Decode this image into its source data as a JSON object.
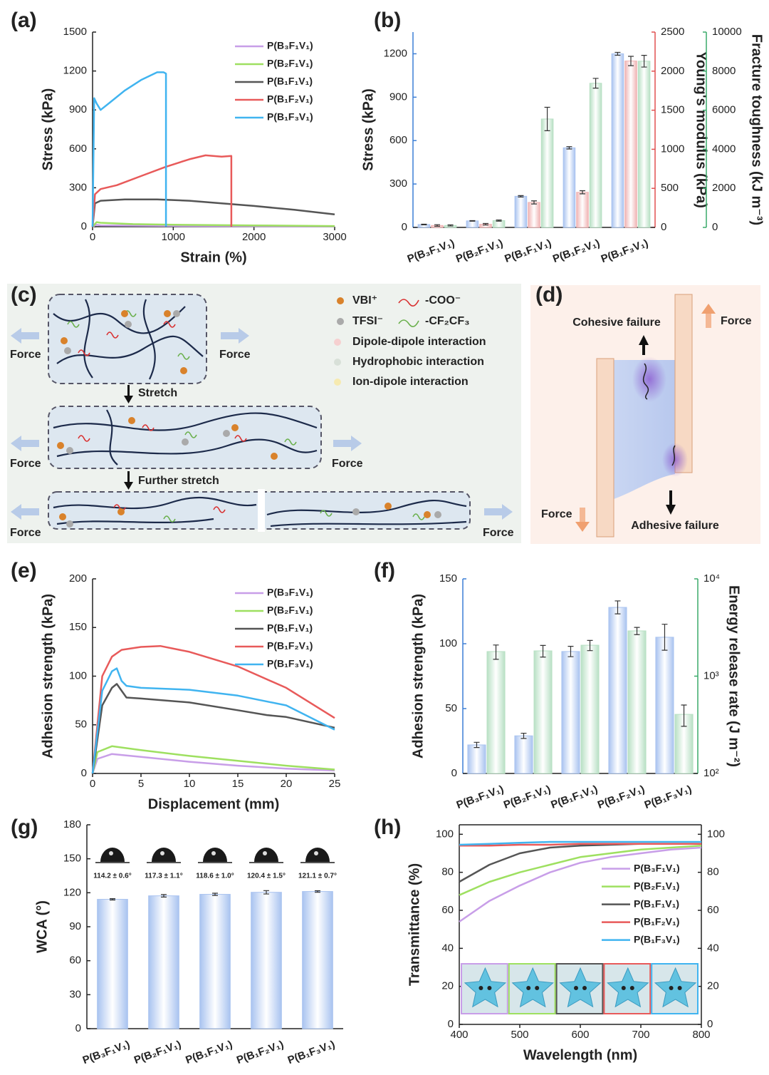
{
  "chart_data": [
    {
      "type": "line",
      "panel": "(a)",
      "xlabel": "Strain (%)",
      "ylabel": "Stress (kPa)",
      "xlim": [
        0,
        3000
      ],
      "ylim": [
        0,
        1500
      ],
      "xticks": [
        0,
        1000,
        2000,
        3000
      ],
      "yticks": [
        0,
        300,
        600,
        900,
        1200,
        1500
      ],
      "legend": "upper right",
      "series": [
        {
          "name": "P(B₃F₁V₁)",
          "color": "#c89ee8",
          "x": [
            0,
            50,
            100,
            500,
            1000,
            2000,
            3000
          ],
          "values": [
            0,
            15,
            10,
            8,
            6,
            4,
            3
          ]
        },
        {
          "name": "P(B₂F₁V₁)",
          "color": "#9ee060",
          "x": [
            0,
            50,
            100,
            500,
            1000,
            2000,
            3000
          ],
          "values": [
            0,
            35,
            30,
            20,
            15,
            10,
            5
          ]
        },
        {
          "name": "P(B₁F₁V₁)",
          "color": "#555555",
          "x": [
            0,
            30,
            100,
            400,
            800,
            1200,
            1600,
            2000,
            2500,
            3000
          ],
          "values": [
            0,
            180,
            200,
            210,
            210,
            200,
            180,
            160,
            130,
            95
          ]
        },
        {
          "name": "P(B₁F₂V₁)",
          "color": "#e85a5a",
          "x": [
            0,
            30,
            100,
            300,
            600,
            900,
            1200,
            1400,
            1600,
            1720,
            1720
          ],
          "values": [
            0,
            250,
            290,
            320,
            390,
            460,
            520,
            550,
            540,
            545,
            0
          ]
        },
        {
          "name": "P(B₁F₃V₁)",
          "color": "#40b4f0",
          "x": [
            0,
            20,
            50,
            100,
            200,
            400,
            600,
            800,
            880,
            910,
            910
          ],
          "values": [
            0,
            990,
            950,
            900,
            950,
            1050,
            1130,
            1190,
            1190,
            1180,
            0
          ]
        }
      ]
    },
    {
      "type": "bar",
      "panel": "(b)",
      "ylabel": "Stress (kPa)",
      "y2label": "Young's modulus (kPa)",
      "y3label": "Fracture toughness (kJ m⁻³)",
      "label_colors": {
        "y": "#3c7fd6",
        "y2": "#e05050",
        "y3": "#3aaa6a"
      },
      "categories": [
        "P(B₃F₁V₁)",
        "P(B₂F₁V₁)",
        "P(B₁F₁V₁)",
        "P(B₁F₂V₁)",
        "P(B₁F₃V₁)"
      ],
      "ylim": [
        0,
        1350
      ],
      "yticks": [
        0,
        300,
        600,
        900,
        1200
      ],
      "y2lim": [
        0,
        2500
      ],
      "y2ticks": [
        0,
        500,
        1000,
        1500,
        2000,
        2500
      ],
      "y3lim": [
        0,
        10000
      ],
      "y3ticks": [
        0,
        2000,
        4000,
        6000,
        8000,
        10000
      ],
      "series": [
        {
          "color": "#a9c3f0",
          "axis": "y",
          "values": [
            20,
            45,
            215,
            550,
            1200
          ],
          "errors": [
            2,
            2,
            5,
            8,
            10
          ]
        },
        {
          "color": "#f0b4b4",
          "axis": "y2",
          "values": [
            25,
            40,
            320,
            450,
            2130
          ],
          "errors": [
            10,
            10,
            20,
            20,
            60
          ]
        },
        {
          "color": "#b8e0c4",
          "axis": "y3",
          "values": [
            100,
            350,
            5550,
            7380,
            8510
          ],
          "errors": [
            30,
            30,
            600,
            250,
            300
          ]
        }
      ]
    },
    {
      "type": "line",
      "panel": "(e)",
      "xlabel": "Displacement (mm)",
      "ylabel": "Adhesion strength (kPa)",
      "xlim": [
        0,
        25
      ],
      "ylim": [
        0,
        200
      ],
      "xticks": [
        0,
        5,
        10,
        15,
        20,
        25
      ],
      "yticks": [
        0,
        50,
        100,
        150,
        200
      ],
      "legend": "upper right",
      "series": [
        {
          "name": "P(B₃F₁V₁)",
          "color": "#c89ee8",
          "x": [
            0,
            0.5,
            2,
            5,
            10,
            15,
            20,
            25
          ],
          "values": [
            0,
            15,
            20,
            17,
            12,
            8,
            5,
            3
          ]
        },
        {
          "name": "P(B₂F₁V₁)",
          "color": "#9ee060",
          "x": [
            0,
            0.5,
            2,
            5,
            10,
            15,
            20,
            25
          ],
          "values": [
            0,
            22,
            28,
            24,
            18,
            13,
            8,
            4
          ]
        },
        {
          "name": "P(B₁F₁V₁)",
          "color": "#555555",
          "x": [
            0,
            1,
            2,
            2.5,
            3,
            3.5,
            5,
            10,
            15,
            18,
            20,
            25
          ],
          "values": [
            0,
            70,
            88,
            92,
            85,
            78,
            77,
            73,
            65,
            60,
            58,
            47
          ]
        },
        {
          "name": "P(B₁F₂V₁)",
          "color": "#e85a5a",
          "x": [
            0,
            1,
            2,
            3,
            5,
            7,
            10,
            15,
            20,
            25
          ],
          "values": [
            0,
            100,
            120,
            127,
            130,
            131,
            125,
            110,
            88,
            57
          ]
        },
        {
          "name": "P(B₁F₃V₁)",
          "color": "#40b4f0",
          "x": [
            0,
            1,
            2,
            2.5,
            3,
            3.5,
            5,
            10,
            15,
            20,
            25
          ],
          "values": [
            0,
            85,
            105,
            108,
            95,
            90,
            88,
            86,
            80,
            70,
            45
          ]
        }
      ]
    },
    {
      "type": "bar",
      "panel": "(f)",
      "ylabel": "Adhesion strength (kPa)",
      "y2label": "Energy release rate (J m⁻²)",
      "label_colors": {
        "y": "#3c7fd6",
        "y2": "#3aaa6a"
      },
      "categories": [
        "P(B₃F₁V₁)",
        "P(B₂F₁V₁)",
        "P(B₁F₁V₁)",
        "P(B₁F₂V₁)",
        "P(B₁F₃V₁)"
      ],
      "ylim": [
        0,
        150
      ],
      "yticks": [
        0,
        50,
        100,
        150
      ],
      "y2lim": [
        100,
        10000
      ],
      "y2log": true,
      "y2ticks": [
        {
          "value": 100,
          "label": "10²"
        },
        {
          "value": 1000,
          "label": "10³"
        },
        {
          "value": 10000,
          "label": "10⁴"
        }
      ],
      "series": [
        {
          "color": "#a9c3f0",
          "axis": "y",
          "values": [
            22,
            29,
            94,
            128,
            105
          ],
          "errors": [
            2,
            2,
            4,
            5,
            10
          ]
        },
        {
          "color": "#b8e0c4",
          "axis": "y2",
          "values": [
            1790,
            1820,
            2080,
            2920,
            405
          ],
          "errors": [
            300,
            250,
            250,
            250,
            100
          ]
        }
      ]
    },
    {
      "type": "bar",
      "panel": "(g)",
      "ylabel": "WCA (°)",
      "categories": [
        "P(B₃F₁V₁)",
        "P(B₂F₁V₁)",
        "P(B₁F₁V₁)",
        "P(B₁F₂V₁)",
        "P(B₁F₃V₁)"
      ],
      "ylim": [
        0,
        180
      ],
      "yticks": [
        0,
        30,
        60,
        90,
        120,
        150,
        180
      ],
      "color": "#a9c3f0",
      "values": [
        114.2,
        117.3,
        118.6,
        120.4,
        121.1
      ],
      "errors": [
        0.6,
        1.1,
        1.0,
        1.5,
        0.7
      ],
      "value_labels": [
        "114.2 ± 0.6°",
        "117.3 ± 1.1°",
        "118.6 ± 1.0°",
        "120.4 ± 1.5°",
        "121.1 ± 0.7°"
      ]
    },
    {
      "type": "line",
      "panel": "(h)",
      "xlabel": "Wavelength (nm)",
      "ylabel": "Transmittance (%)",
      "frame": true,
      "xlim": [
        400,
        800
      ],
      "ylim": [
        0,
        105
      ],
      "xticks": [
        400,
        500,
        600,
        700,
        800
      ],
      "yticks": [
        0,
        20,
        40,
        60,
        80,
        100
      ],
      "y2lim": [
        0,
        105
      ],
      "y2ticks": [
        0,
        20,
        40,
        60,
        80,
        100
      ],
      "legend": "center right",
      "x": [
        400,
        450,
        500,
        550,
        600,
        650,
        700,
        750,
        800
      ],
      "series": [
        {
          "name": "P(B₃F₁V₁)",
          "color": "#c89ee8",
          "values": [
            54,
            65,
            73,
            80,
            85,
            88,
            90,
            92,
            93
          ]
        },
        {
          "name": "P(B₂F₁V₁)",
          "color": "#9ee060",
          "values": [
            68,
            75,
            80,
            84,
            88,
            90,
            92,
            93,
            94
          ]
        },
        {
          "name": "P(B₁F₁V₁)",
          "color": "#555555",
          "values": [
            75,
            84,
            90,
            93,
            94,
            94.5,
            95,
            95,
            95
          ]
        },
        {
          "name": "P(B₁F₂V₁)",
          "color": "#e85a5a",
          "values": [
            94,
            94,
            94.5,
            94.5,
            95,
            95,
            95,
            95,
            95
          ]
        },
        {
          "name": "P(B₁F₃V₁)",
          "color": "#40b4f0",
          "values": [
            94.5,
            95,
            95.5,
            96,
            96,
            96,
            96,
            96,
            96
          ]
        }
      ]
    }
  ],
  "diagrams": [
    {
      "panel": "(c)",
      "legend": [
        "VBI⁺",
        "-COO⁻",
        "TFSI⁻",
        "-CF₂CF₃",
        "Dipole-dipole interaction",
        "Hydrophobic interaction",
        "Ion-dipole interaction"
      ],
      "steps": [
        "Stretch",
        "Further stretch"
      ],
      "forces": [
        "Force",
        "Force",
        "Force",
        "Force",
        "Force",
        "Force"
      ]
    },
    {
      "panel": "(d)",
      "labels": [
        "Cohesive failure",
        "Force",
        "Force",
        "Adhesive failure"
      ]
    }
  ]
}
